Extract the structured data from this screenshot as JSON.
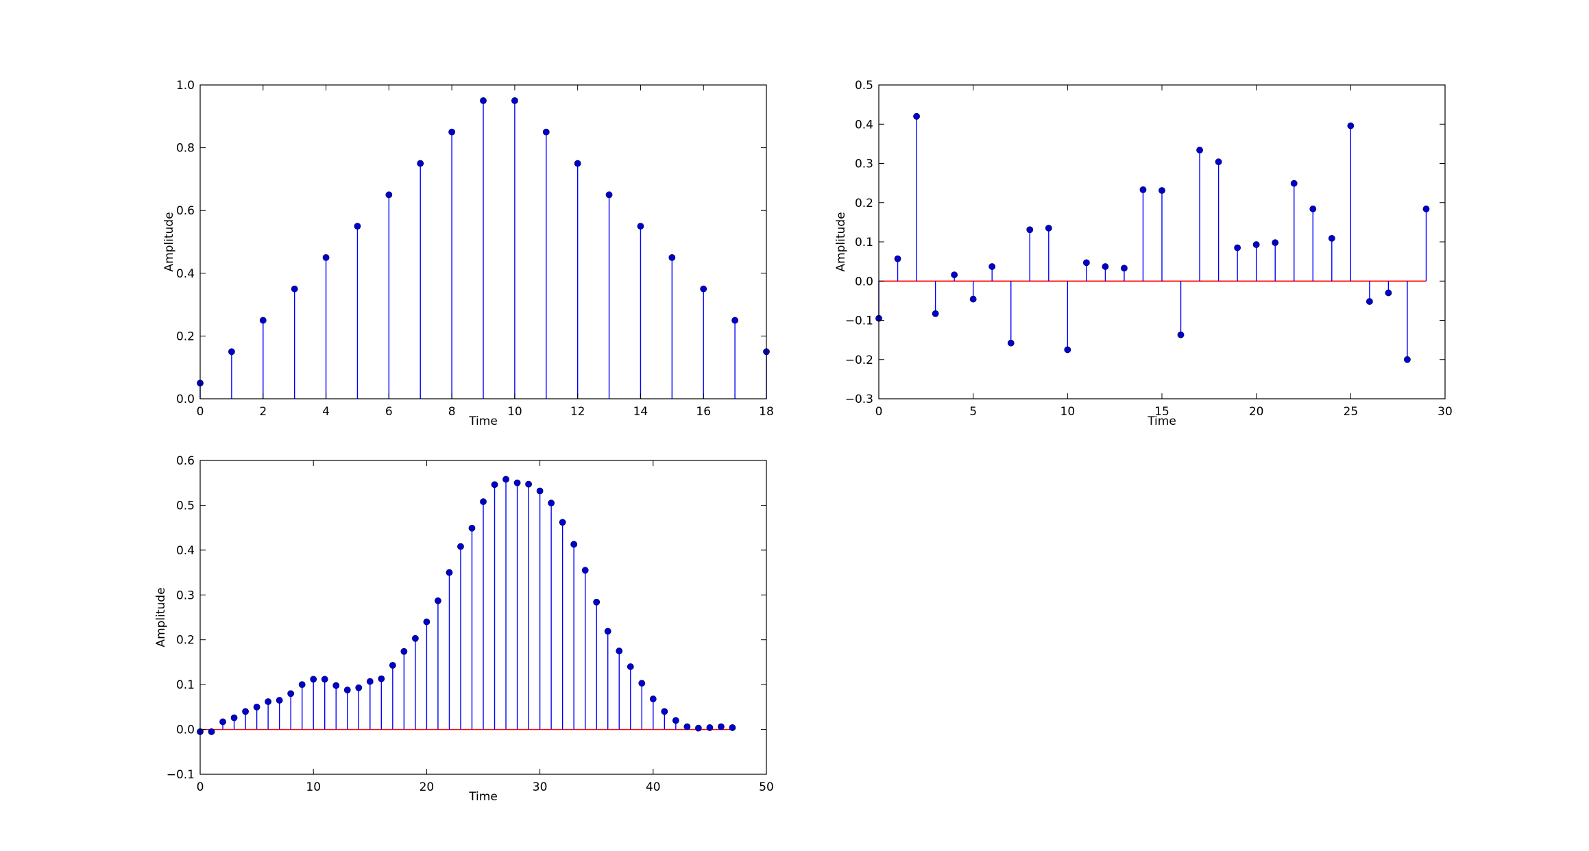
{
  "figure": {
    "background": "#ffffff",
    "stem_color": "#0000ff",
    "marker_color": "#0000cc",
    "baseline_color": "#ff0000"
  },
  "chart_data": [
    {
      "type": "stem",
      "title": "",
      "xlabel": "Time",
      "ylabel": "Amplitude",
      "xlim": [
        0,
        18
      ],
      "ylim": [
        0.0,
        1.0
      ],
      "xticks": [
        0,
        2,
        4,
        6,
        8,
        10,
        12,
        14,
        16,
        18
      ],
      "xtick_labels": [
        "0",
        "2",
        "4",
        "6",
        "8",
        "10",
        "12",
        "14",
        "16",
        "18"
      ],
      "yticks": [
        0.0,
        0.2,
        0.4,
        0.6,
        0.8,
        1.0
      ],
      "ytick_labels": [
        "0.0",
        "0.2",
        "0.4",
        "0.6",
        "0.8",
        "1.0"
      ],
      "baseline": 0,
      "grid": false,
      "x": [
        0,
        1,
        2,
        3,
        4,
        5,
        6,
        7,
        8,
        9,
        10,
        11,
        12,
        13,
        14,
        15,
        16,
        17,
        18
      ],
      "y": [
        0.05,
        0.15,
        0.25,
        0.35,
        0.45,
        0.55,
        0.65,
        0.75,
        0.85,
        0.95,
        0.95,
        0.85,
        0.75,
        0.65,
        0.55,
        0.45,
        0.35,
        0.25,
        0.15
      ]
    },
    {
      "type": "stem",
      "title": "",
      "xlabel": "Time",
      "ylabel": "Amplitude",
      "xlim": [
        0,
        30
      ],
      "ylim": [
        -0.3,
        0.5
      ],
      "xticks": [
        0,
        5,
        10,
        15,
        20,
        25,
        30
      ],
      "xtick_labels": [
        "0",
        "5",
        "10",
        "15",
        "20",
        "25",
        "30"
      ],
      "yticks": [
        -0.3,
        -0.2,
        -0.1,
        0.0,
        0.1,
        0.2,
        0.3,
        0.4,
        0.5
      ],
      "ytick_labels": [
        "−0.3",
        "−0.2",
        "−0.1",
        "0.0",
        "0.1",
        "0.2",
        "0.3",
        "0.4",
        "0.5"
      ],
      "baseline": 0,
      "baseline_range": [
        0,
        29
      ],
      "grid": false,
      "x": [
        0,
        1,
        2,
        3,
        4,
        5,
        6,
        7,
        8,
        9,
        10,
        11,
        12,
        13,
        14,
        15,
        16,
        17,
        18,
        19,
        20,
        21,
        22,
        23,
        24,
        25,
        26,
        27,
        28,
        29
      ],
      "y": [
        -0.095,
        0.057,
        0.42,
        -0.083,
        0.016,
        -0.046,
        0.037,
        -0.158,
        0.131,
        0.135,
        -0.175,
        0.047,
        0.037,
        0.033,
        0.233,
        0.231,
        -0.137,
        0.334,
        0.304,
        0.085,
        0.093,
        0.098,
        0.249,
        0.184,
        0.109,
        0.396,
        -0.052,
        -0.03,
        -0.2,
        0.184
      ]
    },
    {
      "type": "stem",
      "title": "",
      "xlabel": "Time",
      "ylabel": "Amplitude",
      "xlim": [
        0,
        50
      ],
      "ylim": [
        -0.1,
        0.6
      ],
      "xticks": [
        0,
        10,
        20,
        30,
        40,
        50
      ],
      "xtick_labels": [
        "0",
        "10",
        "20",
        "30",
        "40",
        "50"
      ],
      "yticks": [
        -0.1,
        0.0,
        0.1,
        0.2,
        0.3,
        0.4,
        0.5,
        0.6
      ],
      "ytick_labels": [
        "−0.1",
        "0.0",
        "0.1",
        "0.2",
        "0.3",
        "0.4",
        "0.5",
        "0.6"
      ],
      "baseline": 0,
      "baseline_range": [
        0,
        47
      ],
      "grid": false,
      "x": [
        0,
        1,
        2,
        3,
        4,
        5,
        6,
        7,
        8,
        9,
        10,
        11,
        12,
        13,
        14,
        15,
        16,
        17,
        18,
        19,
        20,
        21,
        22,
        23,
        24,
        25,
        26,
        27,
        28,
        29,
        30,
        31,
        32,
        33,
        34,
        35,
        36,
        37,
        38,
        39,
        40,
        41,
        42,
        43,
        44,
        45,
        46,
        47
      ],
      "y": [
        -0.005,
        -0.005,
        0.017,
        0.026,
        0.04,
        0.05,
        0.062,
        0.065,
        0.08,
        0.1,
        0.112,
        0.112,
        0.098,
        0.088,
        0.093,
        0.107,
        0.113,
        0.143,
        0.174,
        0.203,
        0.24,
        0.287,
        0.35,
        0.408,
        0.449,
        0.508,
        0.546,
        0.558,
        0.55,
        0.547,
        0.532,
        0.505,
        0.462,
        0.413,
        0.355,
        0.284,
        0.219,
        0.175,
        0.14,
        0.103,
        0.068,
        0.04,
        0.02,
        0.006,
        0.003,
        0.004,
        0.006,
        0.004
      ]
    }
  ]
}
